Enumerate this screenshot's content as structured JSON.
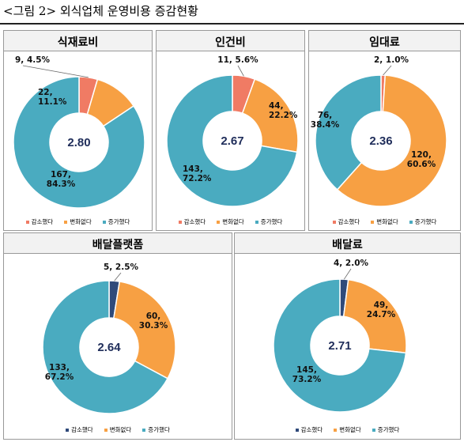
{
  "figure_title": "<그림 2> 외식업체 운영비용 증감현황",
  "legend_labels": [
    "감소했다",
    "변화없다",
    "증가했다"
  ],
  "chart_data": [
    {
      "type": "pie",
      "title": "식재료비",
      "center_value": "2.80",
      "categories": [
        "감소했다",
        "변화없다",
        "증가했다"
      ],
      "values": [
        9,
        22,
        167
      ],
      "percents": [
        4.5,
        11.1,
        84.3
      ],
      "slice_labels": [
        "9, 4.5%",
        "22,\n11.1%",
        "167,\n84.3%"
      ],
      "colors": [
        "#f07b64",
        "#f7a043",
        "#4aabc0"
      ]
    },
    {
      "type": "pie",
      "title": "인건비",
      "center_value": "2.67",
      "categories": [
        "감소했다",
        "변화없다",
        "증가했다"
      ],
      "values": [
        11,
        44,
        143
      ],
      "percents": [
        5.6,
        22.2,
        72.2
      ],
      "slice_labels": [
        "11, 5.6%",
        "44,\n22.2%",
        "143,\n72.2%"
      ],
      "colors": [
        "#f07b64",
        "#f7a043",
        "#4aabc0"
      ]
    },
    {
      "type": "pie",
      "title": "임대료",
      "center_value": "2.36",
      "categories": [
        "감소했다",
        "변화없다",
        "증가했다"
      ],
      "values": [
        2,
        120,
        76
      ],
      "percents": [
        1.0,
        60.6,
        38.4
      ],
      "slice_labels": [
        "2, 1.0%",
        "120,\n60.6%",
        "76,\n38.4%"
      ],
      "colors": [
        "#f07b64",
        "#f7a043",
        "#4aabc0"
      ]
    },
    {
      "type": "pie",
      "title": "배달플랫폼",
      "center_value": "2.64",
      "categories": [
        "감소했다",
        "변화없다",
        "증가했다"
      ],
      "values": [
        5,
        60,
        133
      ],
      "percents": [
        2.5,
        30.3,
        67.2
      ],
      "slice_labels": [
        "5, 2.5%",
        "60,\n30.3%",
        "133,\n67.2%"
      ],
      "colors": [
        "#2f4a7a",
        "#f7a043",
        "#4aabc0"
      ]
    },
    {
      "type": "pie",
      "title": "배달료",
      "center_value": "2.71",
      "categories": [
        "감소했다",
        "변화없다",
        "증가했다"
      ],
      "values": [
        4,
        49,
        145
      ],
      "percents": [
        2.0,
        24.7,
        73.2
      ],
      "slice_labels": [
        "4, 2.0%",
        "49,\n24.7%",
        "145,\n73.2%"
      ],
      "colors": [
        "#2f4a7a",
        "#f7a043",
        "#4aabc0"
      ]
    }
  ]
}
